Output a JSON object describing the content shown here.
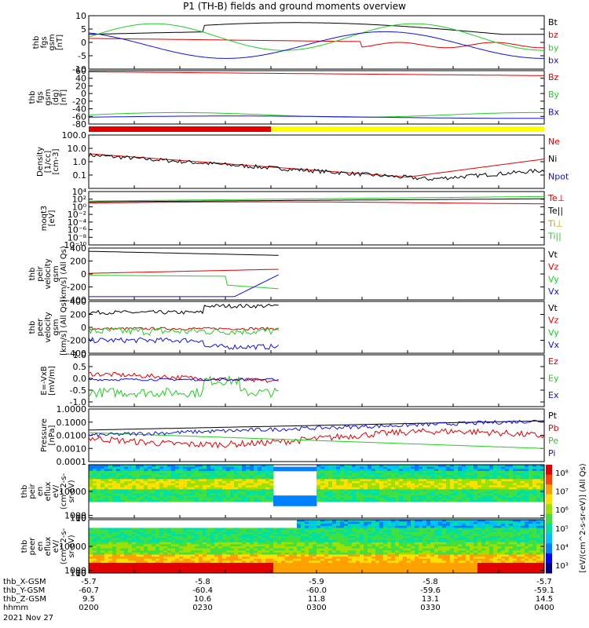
{
  "title": "P1 (TH-B) fields and ground moments overview",
  "colors": {
    "black": "#000000",
    "red": "#e00000",
    "green": "#22cc22",
    "blue": "#1010e0",
    "yellow": "#ffff00"
  },
  "chart_data": [
    {
      "type": "line",
      "name": "fgs",
      "ylabel": [
        "thb",
        "fgs",
        "gsm",
        "[nT]"
      ],
      "ylim": [
        -10,
        10
      ],
      "ticks": [
        "10",
        "5",
        "0",
        "-5",
        "-10"
      ],
      "tick_values": [
        10,
        5,
        0,
        -5,
        -10
      ],
      "legend": [
        "Bt",
        "bz",
        "by",
        "bx"
      ]
    },
    {
      "type": "line",
      "name": "fgs-gsm",
      "ylabel": [
        "thb",
        "fgs",
        "gsm",
        "(dg)",
        "[nT]"
      ],
      "ylim": [
        -80,
        60
      ],
      "ticks": [
        "60",
        "40",
        "20",
        "0",
        "-20",
        "-40",
        "-60",
        "-80"
      ],
      "tick_values": [
        60,
        40,
        20,
        0,
        -20,
        -40,
        -60,
        -80
      ],
      "legend": [
        "Bz",
        "By",
        "Bx"
      ]
    },
    {
      "type": "bar",
      "name": "mode-bar",
      "segments": [
        {
          "from": 0,
          "to": 0.4,
          "color": "red"
        },
        {
          "from": 0.4,
          "to": 1,
          "color": "yellow"
        }
      ]
    },
    {
      "type": "line",
      "name": "density",
      "ylabel": [
        "Density",
        "[1/cc]",
        "[cm-3]"
      ],
      "ylim": [
        0.01,
        100
      ],
      "log": true,
      "ticks": [
        "100.0",
        "10.0",
        "1.0",
        "0.1"
      ],
      "tick_values": [
        100,
        10,
        1,
        0.1
      ],
      "legend": [
        "Ne",
        "Ni",
        "Npot"
      ]
    },
    {
      "type": "line",
      "name": "temperature",
      "ylabel": [
        "moqt3",
        "[eV]"
      ],
      "ylim": [
        1e-10,
        10000
      ],
      "log": true,
      "ticks": [
        "10⁴",
        "10²",
        "10⁰",
        "10⁻²",
        "10⁻⁴",
        "10⁻⁶",
        "10⁻⁸",
        "10⁻¹⁰"
      ],
      "tick_values": [
        10000,
        100,
        1,
        0.01,
        0.0001,
        1e-06,
        1e-08,
        1e-10
      ],
      "legend": [
        "Te⊥",
        "Te||",
        "Ti⊥",
        "Ti||"
      ]
    },
    {
      "type": "line",
      "name": "ion-velocity",
      "ylabel": [
        "thb",
        "peir",
        "velocity",
        "gsm",
        "[km/s] (All Qs)"
      ],
      "ylim": [
        -400,
        400
      ],
      "ticks": [
        "400",
        "200",
        "0",
        "-200",
        "-400"
      ],
      "tick_values": [
        400,
        200,
        0,
        -200,
        -400
      ],
      "legend": [
        "Vt",
        "Vz",
        "Vy",
        "Vx"
      ]
    },
    {
      "type": "line",
      "name": "electron-velocity",
      "ylabel": [
        "thb",
        "peer",
        "velocity",
        "gsm",
        "[km/s] (All Qs)"
      ],
      "ylim": [
        -400,
        400
      ],
      "ticks": [
        "400",
        "200",
        "0",
        "-200",
        "-400"
      ],
      "tick_values": [
        400,
        200,
        0,
        -200,
        -400
      ],
      "legend": [
        "Vt",
        "Vz",
        "Vy",
        "Vx"
      ]
    },
    {
      "type": "line",
      "name": "efield",
      "ylabel": [
        "E=-VxB",
        "[mV/m]"
      ],
      "ylim": [
        -1.2,
        1
      ],
      "ticks": [
        "1.0",
        "0.5",
        "0.0",
        "-0.5",
        "-1.0"
      ],
      "tick_values": [
        1,
        0.5,
        0,
        -0.5,
        -1
      ],
      "legend": [
        "Ez",
        "Ey",
        "Ex"
      ]
    },
    {
      "type": "line",
      "name": "pressure",
      "ylabel": [
        "Pressure",
        "[nPa]"
      ],
      "ylim": [
        0.0001,
        1
      ],
      "log": true,
      "ticks": [
        "1.0000",
        "0.1000",
        "0.0100",
        "0.0010",
        "0.0001"
      ],
      "tick_values": [
        1,
        0.1,
        0.01,
        0.001,
        0.0001
      ],
      "legend": [
        "Pt",
        "Pb",
        "Pe",
        "Pi"
      ]
    },
    {
      "type": "heatmap",
      "name": "ion-spectrogram",
      "ylabel": [
        "thb",
        "peir",
        "en",
        "eflux",
        "eV/",
        "(cm^2-s-",
        "sr-eV)"
      ],
      "ticks": [
        "10000",
        "1000",
        "100",
        "10"
      ],
      "tick_values": [
        10000,
        1000,
        100,
        10
      ],
      "ylim": [
        5,
        20000
      ]
    },
    {
      "type": "heatmap",
      "name": "electron-spectrogram",
      "ylabel": [
        "thb",
        "peer",
        "en",
        "eflux",
        "eV/",
        "(cm^2-s-",
        "sr-eV)"
      ],
      "ticks": [
        "10000",
        "1000",
        "100",
        "10"
      ],
      "tick_values": [
        10000,
        1000,
        100,
        10
      ],
      "ylim": [
        5,
        20000
      ]
    }
  ],
  "colorbar": {
    "ticks": [
      "10⁸",
      "10⁷",
      "10⁶",
      "10⁵",
      "10⁴",
      "10³"
    ],
    "label": "[eV/(cm^2-s-sr-eV)] (All Qs)"
  },
  "xaxis": {
    "rows": [
      {
        "label": "thb_X-GSM",
        "values": [
          "-5.7",
          "-5.8",
          "-5.9",
          "-5.8",
          "-5.7"
        ]
      },
      {
        "label": "thb_Y-GSM",
        "values": [
          "-60.7",
          "-60.4",
          "-60.0",
          "-59.6",
          "-59.1"
        ]
      },
      {
        "label": "thb_Z-GSM",
        "values": [
          "9.5",
          "10.6",
          "11.8",
          "13.1",
          "14.5"
        ]
      },
      {
        "label": "hhmm",
        "values": [
          "0200",
          "0230",
          "0300",
          "0330",
          "0400"
        ]
      }
    ],
    "date": "2021 Nov 27"
  }
}
